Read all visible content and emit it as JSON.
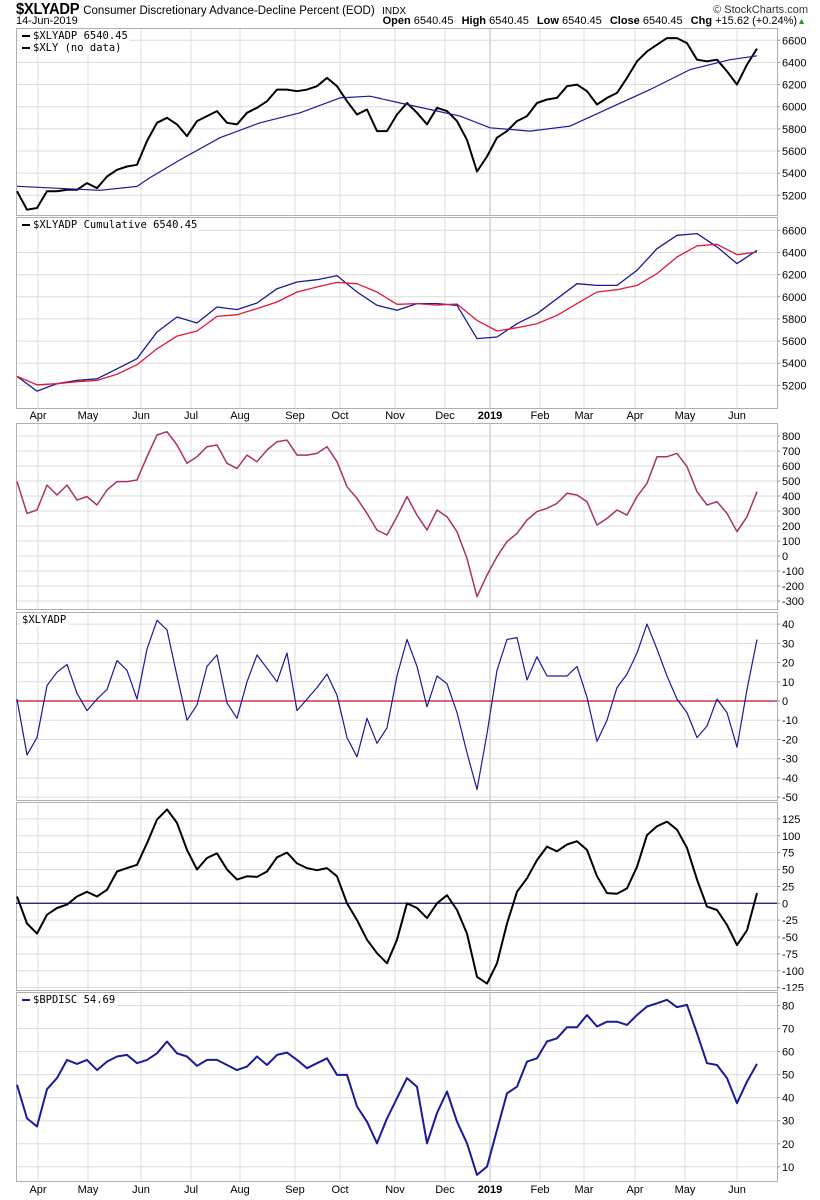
{
  "header": {
    "symbol": "$XLYADP",
    "description": "Consumer Discretionary Advance-Decline Percent (EOD)",
    "exchange": "INDX",
    "copyright": "© StockCharts.com",
    "date": "14-Jun-2019",
    "ohlc": [
      {
        "label": "Open",
        "value": "6540.45"
      },
      {
        "label": "High",
        "value": "6540.45"
      },
      {
        "label": "Low",
        "value": "6540.45"
      },
      {
        "label": "Close",
        "value": "6540.45"
      }
    ],
    "chg_label": "Chg",
    "chg_value": "+15.62 (+0.24%)",
    "chg_arrow": "▲"
  },
  "colors": {
    "grid": "#dcdcdc",
    "frame": "#b0b0b0",
    "navy": "#1a1a9a",
    "red": "#e0183c",
    "maroon": "#a8336a",
    "black": "#000000",
    "up": "#2a9a2a"
  },
  "x_axis": {
    "points": 75,
    "ticks": [
      {
        "label": "Apr",
        "x": 2.1
      },
      {
        "label": "May",
        "x": 7.1
      },
      {
        "label": "Jun",
        "x": 12.4
      },
      {
        "label": "Jul",
        "x": 17.4
      },
      {
        "label": "Aug",
        "x": 22.3
      },
      {
        "label": "Sep",
        "x": 27.8
      },
      {
        "label": "Oct",
        "x": 32.3
      },
      {
        "label": "Nov",
        "x": 37.8
      },
      {
        "label": "Dec",
        "x": 42.8
      },
      {
        "label": "2019",
        "x": 47.3,
        "bold": true
      },
      {
        "label": "Feb",
        "x": 52.3
      },
      {
        "label": "Mar",
        "x": 56.7
      },
      {
        "label": "Apr",
        "x": 61.8
      },
      {
        "label": "May",
        "x": 66.8
      },
      {
        "label": "Jun",
        "x": 72.0
      }
    ]
  },
  "chart_data": [
    {
      "type": "line",
      "id": "price",
      "ylim": [
        5013,
        6711
      ],
      "yticks": [
        5200,
        5400,
        5600,
        5800,
        6000,
        6200,
        6400,
        6600
      ],
      "legend": [
        "$XLYADP 6540.45",
        "$XLY (no data)"
      ],
      "series": [
        {
          "name": "$XLYADP",
          "color": "#000000",
          "width": 2,
          "values": [
            5237,
            5070,
            5085,
            5237,
            5237,
            5250,
            5250,
            5310,
            5265,
            5370,
            5430,
            5460,
            5475,
            5690,
            5855,
            5900,
            5840,
            5735,
            5870,
            5915,
            5960,
            5855,
            5840,
            5945,
            5990,
            6050,
            6155,
            6155,
            6140,
            6155,
            6185,
            6260,
            6185,
            6050,
            5930,
            5975,
            5780,
            5780,
            5930,
            6034,
            5945,
            5840,
            5990,
            5960,
            5870,
            5700,
            5415,
            5550,
            5720,
            5780,
            5870,
            5915,
            6034,
            6065,
            6080,
            6185,
            6200,
            6140,
            6020,
            6080,
            6125,
            6260,
            6410,
            6500,
            6560,
            6620,
            6620,
            6575,
            6425,
            6410,
            6425,
            6320,
            6200,
            6380,
            6525
          ]
        },
        {
          "name": "Moving average",
          "color": "#1a1a9a",
          "width": 1.2,
          "x": [
            0,
            8.3,
            12,
            13.3,
            16.3,
            20.3,
            24.3,
            28.3,
            32.3,
            35.3,
            38.3,
            41.3,
            44.3,
            47.3,
            51.3,
            55.3,
            59.3,
            63.3,
            67.3,
            71.3,
            74
          ],
          "values": [
            5281,
            5245,
            5280,
            5360,
            5520,
            5720,
            5855,
            5945,
            6080,
            6095,
            6034,
            5975,
            5915,
            5810,
            5780,
            5825,
            5990,
            6155,
            6335,
            6425,
            6460
          ]
        }
      ]
    },
    {
      "type": "line",
      "id": "cumulative",
      "ylim": [
        4987,
        6720
      ],
      "yticks": [
        5200,
        5400,
        5600,
        5800,
        6000,
        6200,
        6400,
        6600
      ],
      "legend": [
        "$XLYADP Cumulative 6540.45"
      ],
      "series": [
        {
          "name": "Cumulative",
          "color": "#1a1a9a",
          "width": 1.3,
          "every": 2,
          "values": [
            5282,
            5149,
            5215,
            5245,
            5260,
            5350,
            5441,
            5682,
            5817,
            5763,
            5908,
            5884,
            5944,
            6073,
            6133,
            6154,
            6191,
            6043,
            5923,
            5878,
            5938,
            5938,
            5923,
            5622,
            5637,
            5757,
            5847,
            5983,
            6118,
            6103,
            6103,
            6239,
            6434,
            6555,
            6570,
            6450,
            6299,
            6419
          ]
        },
        {
          "name": "Cumulative MA",
          "color": "#e0183c",
          "width": 1.3,
          "every": 2,
          "values": [
            5282,
            5205,
            5215,
            5233,
            5245,
            5300,
            5387,
            5530,
            5645,
            5691,
            5823,
            5838,
            5893,
            5953,
            6043,
            6088,
            6130,
            6118,
            6043,
            5932,
            5938,
            5925,
            5935,
            5787,
            5691,
            5721,
            5757,
            5832,
            5938,
            6043,
            6064,
            6103,
            6209,
            6359,
            6459,
            6474,
            6380,
            6404
          ]
        }
      ]
    },
    {
      "type": "line",
      "id": "oscillator",
      "ylim": [
        -360,
        887
      ],
      "yticks": [
        -300,
        -200,
        -100,
        0,
        100,
        200,
        300,
        400,
        500,
        600,
        700,
        800
      ],
      "legend": [],
      "series": [
        {
          "name": "Oscillator",
          "color": "#a8336a",
          "width": 1.5,
          "values": [
            496,
            284,
            307,
            473,
            407,
            473,
            373,
            396,
            340,
            440,
            496,
            496,
            507,
            662,
            807,
            829,
            740,
            618,
            662,
            729,
            740,
            618,
            584,
            673,
            629,
            707,
            762,
            773,
            673,
            673,
            684,
            729,
            629,
            462,
            384,
            284,
            173,
            140,
            262,
            396,
            273,
            173,
            307,
            262,
            162,
            -16,
            -271,
            -127,
            -4,
            96,
            151,
            240,
            296,
            318,
            351,
            418,
            407,
            362,
            207,
            251,
            307,
            273,
            396,
            484,
            662,
            662,
            684,
            596,
            429,
            340,
            362,
            284,
            162,
            262,
            429
          ]
        }
      ]
    },
    {
      "type": "line",
      "id": "xlyadp",
      "ylim": [
        -52,
        46.3
      ],
      "yticks": [
        -50,
        -40,
        -30,
        -20,
        -10,
        0,
        10,
        20,
        30,
        40
      ],
      "legend": [
        "$XLYADP"
      ],
      "zero_line": {
        "value": 0,
        "color": "#c0102c"
      },
      "series": [
        {
          "name": "$XLYADP",
          "color": "#1a1a9a",
          "width": 1.2,
          "values": [
            1,
            -28,
            -19,
            8,
            15,
            19,
            4,
            -5,
            1,
            6,
            21,
            16,
            1,
            27,
            42,
            37,
            13,
            -10,
            -2,
            18,
            24,
            -1,
            -9,
            10,
            24,
            17,
            10,
            25,
            -5,
            1,
            7,
            14,
            3,
            -19,
            -29,
            -9,
            -22,
            -14,
            13,
            32,
            18,
            -3,
            13,
            9,
            -6,
            -27,
            -46,
            -17,
            16,
            32,
            33,
            11,
            23,
            13,
            13,
            13,
            18,
            2,
            -21,
            -10,
            7,
            14,
            25,
            40,
            27,
            13,
            1,
            -6,
            -19,
            -13,
            1,
            -6,
            -24,
            6,
            32
          ]
        }
      ]
    },
    {
      "type": "line",
      "id": "momentum",
      "ylim": [
        -130,
        150
      ],
      "yticks": [
        -125,
        -100,
        -75,
        -50,
        -25,
        0,
        25,
        50,
        75,
        100,
        125
      ],
      "legend": [],
      "zero_line": {
        "value": 0,
        "color": "#101070"
      },
      "series": [
        {
          "name": "Momentum",
          "color": "#000000",
          "width": 2,
          "values": [
            10,
            -30,
            -45,
            -17,
            -7,
            -2,
            10,
            17,
            10,
            20,
            47,
            52,
            57,
            89,
            124,
            139,
            119,
            79,
            50,
            67,
            74,
            50,
            35,
            40,
            39,
            47,
            68,
            75,
            59,
            52,
            49,
            52,
            40,
            0,
            -25,
            -54,
            -74,
            -89,
            -54,
            0,
            -7,
            -22,
            0,
            12,
            -10,
            -45,
            -109,
            -119,
            -89,
            -30,
            17,
            37,
            64,
            84,
            77,
            87,
            92,
            79,
            40,
            15,
            14,
            22,
            54,
            101,
            114,
            121,
            109,
            82,
            35,
            -5,
            -10,
            -32,
            -62,
            -40,
            15
          ]
        }
      ]
    },
    {
      "type": "line",
      "id": "bpdisc",
      "ylim": [
        3.4,
        85.9
      ],
      "yticks": [
        10,
        20,
        30,
        40,
        50,
        60,
        70,
        80
      ],
      "legend": [
        "$BPDISC 54.69"
      ],
      "series": [
        {
          "name": "$BPDISC",
          "color": "#1a1a9a",
          "width": 2,
          "values": [
            45.6,
            31,
            27.5,
            43.7,
            48.5,
            56.4,
            54.7,
            56.4,
            52,
            55.7,
            57.9,
            58.6,
            55,
            56.4,
            59.3,
            64.4,
            59.3,
            57.9,
            53.8,
            56.4,
            56.4,
            54.2,
            52,
            53.5,
            57.9,
            54.2,
            58.6,
            59.6,
            56.4,
            52.8,
            55,
            57.1,
            49.9,
            49.9,
            36.2,
            29.6,
            20.2,
            31,
            39.8,
            48.5,
            44.8,
            20.2,
            33.3,
            42.7,
            29.6,
            20.2,
            6.5,
            10.1,
            26,
            41.9,
            44.8,
            55.7,
            57.1,
            64.4,
            65.8,
            70.6,
            70.6,
            75.9,
            70.9,
            73,
            73,
            71.6,
            75.9,
            79.6,
            81,
            82.5,
            79.3,
            80.3,
            68,
            55,
            54.2,
            48.5,
            37.6,
            47,
            54.7
          ]
        }
      ]
    }
  ]
}
